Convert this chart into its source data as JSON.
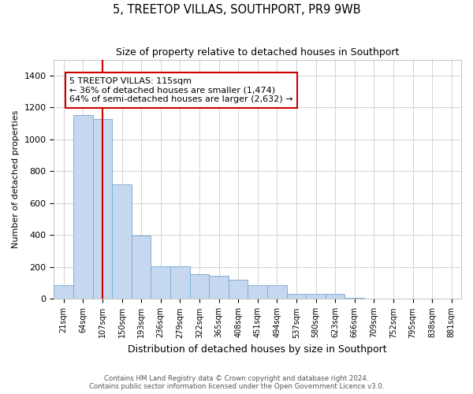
{
  "title": "5, TREETOP VILLAS, SOUTHPORT, PR9 9WB",
  "subtitle": "Size of property relative to detached houses in Southport",
  "xlabel": "Distribution of detached houses by size in Southport",
  "ylabel": "Number of detached properties",
  "categories": [
    "21sqm",
    "64sqm",
    "107sqm",
    "150sqm",
    "193sqm",
    "236sqm",
    "279sqm",
    "322sqm",
    "365sqm",
    "408sqm",
    "451sqm",
    "494sqm",
    "537sqm",
    "580sqm",
    "623sqm",
    "666sqm",
    "709sqm",
    "752sqm",
    "795sqm",
    "838sqm",
    "881sqm"
  ],
  "values": [
    85,
    1150,
    1130,
    720,
    395,
    205,
    205,
    155,
    145,
    120,
    85,
    85,
    30,
    30,
    30,
    5,
    0,
    0,
    0,
    0,
    0
  ],
  "bar_color": "#c5d8f0",
  "bar_edge_color": "#7eafd6",
  "vline_x": 2.0,
  "vline_color": "#cc0000",
  "annotation_text": "5 TREETOP VILLAS: 115sqm\n← 36% of detached houses are smaller (1,474)\n64% of semi-detached houses are larger (2,632) →",
  "annotation_box_color": "#ffffff",
  "annotation_box_edge": "#cc0000",
  "ylim": [
    0,
    1500
  ],
  "yticks": [
    0,
    200,
    400,
    600,
    800,
    1000,
    1200,
    1400
  ],
  "footer": "Contains HM Land Registry data © Crown copyright and database right 2024.\nContains public sector information licensed under the Open Government Licence v3.0.",
  "background_color": "#ffffff",
  "grid_color": "#cccccc"
}
